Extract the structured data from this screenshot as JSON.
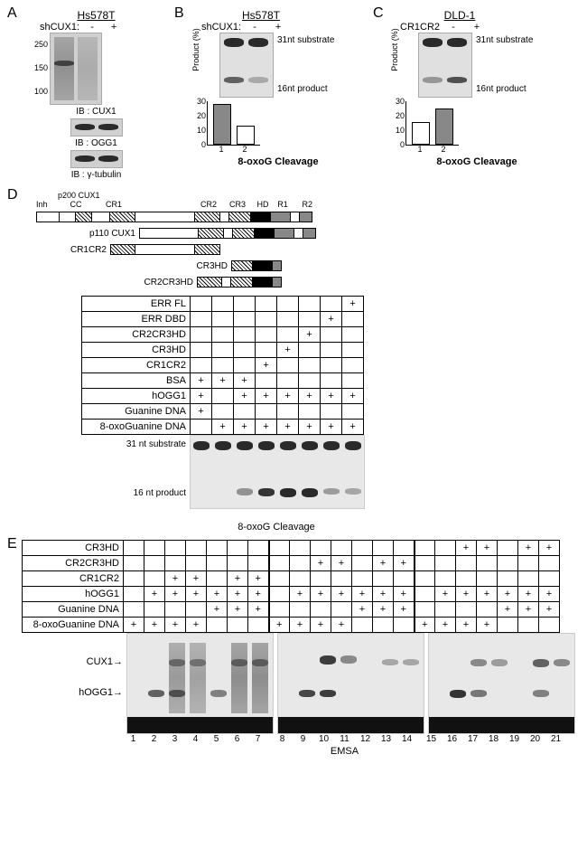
{
  "panelA": {
    "label": "A",
    "cell_line": "Hs578T",
    "treatment_label": "shCUX1:",
    "conditions": [
      "-",
      "+"
    ],
    "mw_markers": [
      "250",
      "150",
      "100"
    ],
    "ib_labels": [
      "IB : CUX1",
      "IB : OGG1",
      "IB : γ-tubulin"
    ]
  },
  "panelB": {
    "label": "B",
    "cell_line": "Hs578T",
    "treatment_label": "shCUX1:",
    "conditions": [
      "-",
      "+"
    ],
    "substrate_label": "31nt substrate",
    "product_label": "16nt product",
    "chart": {
      "type": "bar",
      "ylabel": "Product (%)",
      "ylim": [
        0,
        30
      ],
      "yticks": [
        0,
        10,
        20,
        30
      ],
      "categories": [
        "1",
        "2"
      ],
      "values": [
        27,
        12
      ],
      "bar_colors": [
        "#888888",
        "#ffffff"
      ],
      "xtitle": "8-oxoG Cleavage"
    }
  },
  "panelC": {
    "label": "C",
    "cell_line": "DLD-1",
    "treatment_label": "CR1CR2",
    "conditions": [
      "-",
      "+"
    ],
    "substrate_label": "31nt substrate",
    "product_label": "16nt product",
    "chart": {
      "type": "bar",
      "ylabel": "Product (%)",
      "ylim": [
        0,
        30
      ],
      "yticks": [
        0,
        10,
        20,
        30
      ],
      "categories": [
        "1",
        "2"
      ],
      "values": [
        14,
        24
      ],
      "bar_colors": [
        "#ffffff",
        "#888888"
      ],
      "xtitle": "8-oxoG Cleavage"
    }
  },
  "panelD": {
    "label": "D",
    "diagram": {
      "domain_labels": [
        "Inh",
        "CC",
        "CR1",
        "CR2",
        "CR3",
        "HD",
        "R1",
        "R2"
      ],
      "constructs": [
        "p200 CUX1",
        "p110 CUX1",
        "CR1CR2",
        "CR3HD",
        "CR2CR3HD"
      ]
    },
    "table": {
      "rows": [
        "ERR FL",
        "ERR DBD",
        "CR2CR3HD",
        "CR3HD",
        "CR1CR2",
        "BSA",
        "hOGG1",
        "Guanine DNA",
        "8-oxoGuanine DNA"
      ],
      "lanes": 8,
      "grid": [
        [
          "",
          "",
          "",
          "",
          "",
          "",
          "",
          "+"
        ],
        [
          "",
          "",
          "",
          "",
          "",
          "",
          "+",
          ""
        ],
        [
          "",
          "",
          "",
          "",
          "",
          "+",
          "",
          ""
        ],
        [
          "",
          "",
          "",
          "",
          "+",
          "",
          "",
          ""
        ],
        [
          "",
          "",
          "",
          "+",
          "",
          "",
          "",
          ""
        ],
        [
          "+",
          "+",
          "+",
          "",
          "",
          "",
          "",
          ""
        ],
        [
          "+",
          "",
          "+",
          "+",
          "+",
          "+",
          "+",
          "+"
        ],
        [
          "+",
          "",
          "",
          "",
          "",
          "",
          "",
          ""
        ],
        [
          "",
          "+",
          "+",
          "+",
          "+",
          "+",
          "+",
          "+"
        ]
      ]
    },
    "gel_labels": {
      "substrate": "31 nt substrate",
      "product": "16 nt product",
      "xtitle": "8-oxoG Cleavage"
    }
  },
  "panelE": {
    "label": "E",
    "table": {
      "rows": [
        "CR3HD",
        "CR2CR3HD",
        "CR1CR2",
        "hOGG1",
        "Guanine DNA",
        "8-oxoGuanine DNA"
      ],
      "lanes": 21,
      "grid": [
        [
          "",
          "",
          "",
          "",
          "",
          "",
          "",
          "",
          "",
          "",
          "",
          "",
          "",
          "",
          "",
          "",
          "+",
          "+",
          "",
          "+",
          "+"
        ],
        [
          "",
          "",
          "",
          "",
          "",
          "",
          "",
          "",
          "",
          "+",
          "+",
          "",
          "+",
          "+",
          "",
          "",
          "",
          "",
          "",
          "",
          ""
        ],
        [
          "",
          "",
          "+",
          "+",
          "",
          "+",
          "+",
          "",
          "",
          "",
          "",
          "",
          "",
          "",
          "",
          "",
          "",
          "",
          "",
          "",
          ""
        ],
        [
          "",
          "+",
          "+",
          "+",
          "+",
          "+",
          "+",
          "",
          "+",
          "+",
          "+",
          "+",
          "+",
          "+",
          "",
          "+",
          "+",
          "+",
          "+",
          "+",
          "+"
        ],
        [
          "",
          "",
          "",
          "",
          "+",
          "+",
          "+",
          "",
          "",
          "",
          "",
          "+",
          "+",
          "+",
          "",
          "",
          "",
          "",
          "+",
          "+",
          "+"
        ],
        [
          "+",
          "+",
          "+",
          "+",
          "",
          "",
          "",
          "+",
          "+",
          "+",
          "+",
          "",
          "",
          "",
          "+",
          "+",
          "+",
          "+",
          "",
          "",
          ""
        ]
      ]
    },
    "arrows": [
      "CUX1",
      "hOGG1"
    ],
    "xtitle": "EMSA"
  },
  "style": {
    "bg": "#ffffff",
    "text": "#000000",
    "blot_bg": "#d0d0d0",
    "gel_bg": "#e8e8e8",
    "band_dark": "#1a1a1a",
    "band_med": "#555555",
    "font_label": 16,
    "font_text": 11,
    "font_tiny": 9
  }
}
